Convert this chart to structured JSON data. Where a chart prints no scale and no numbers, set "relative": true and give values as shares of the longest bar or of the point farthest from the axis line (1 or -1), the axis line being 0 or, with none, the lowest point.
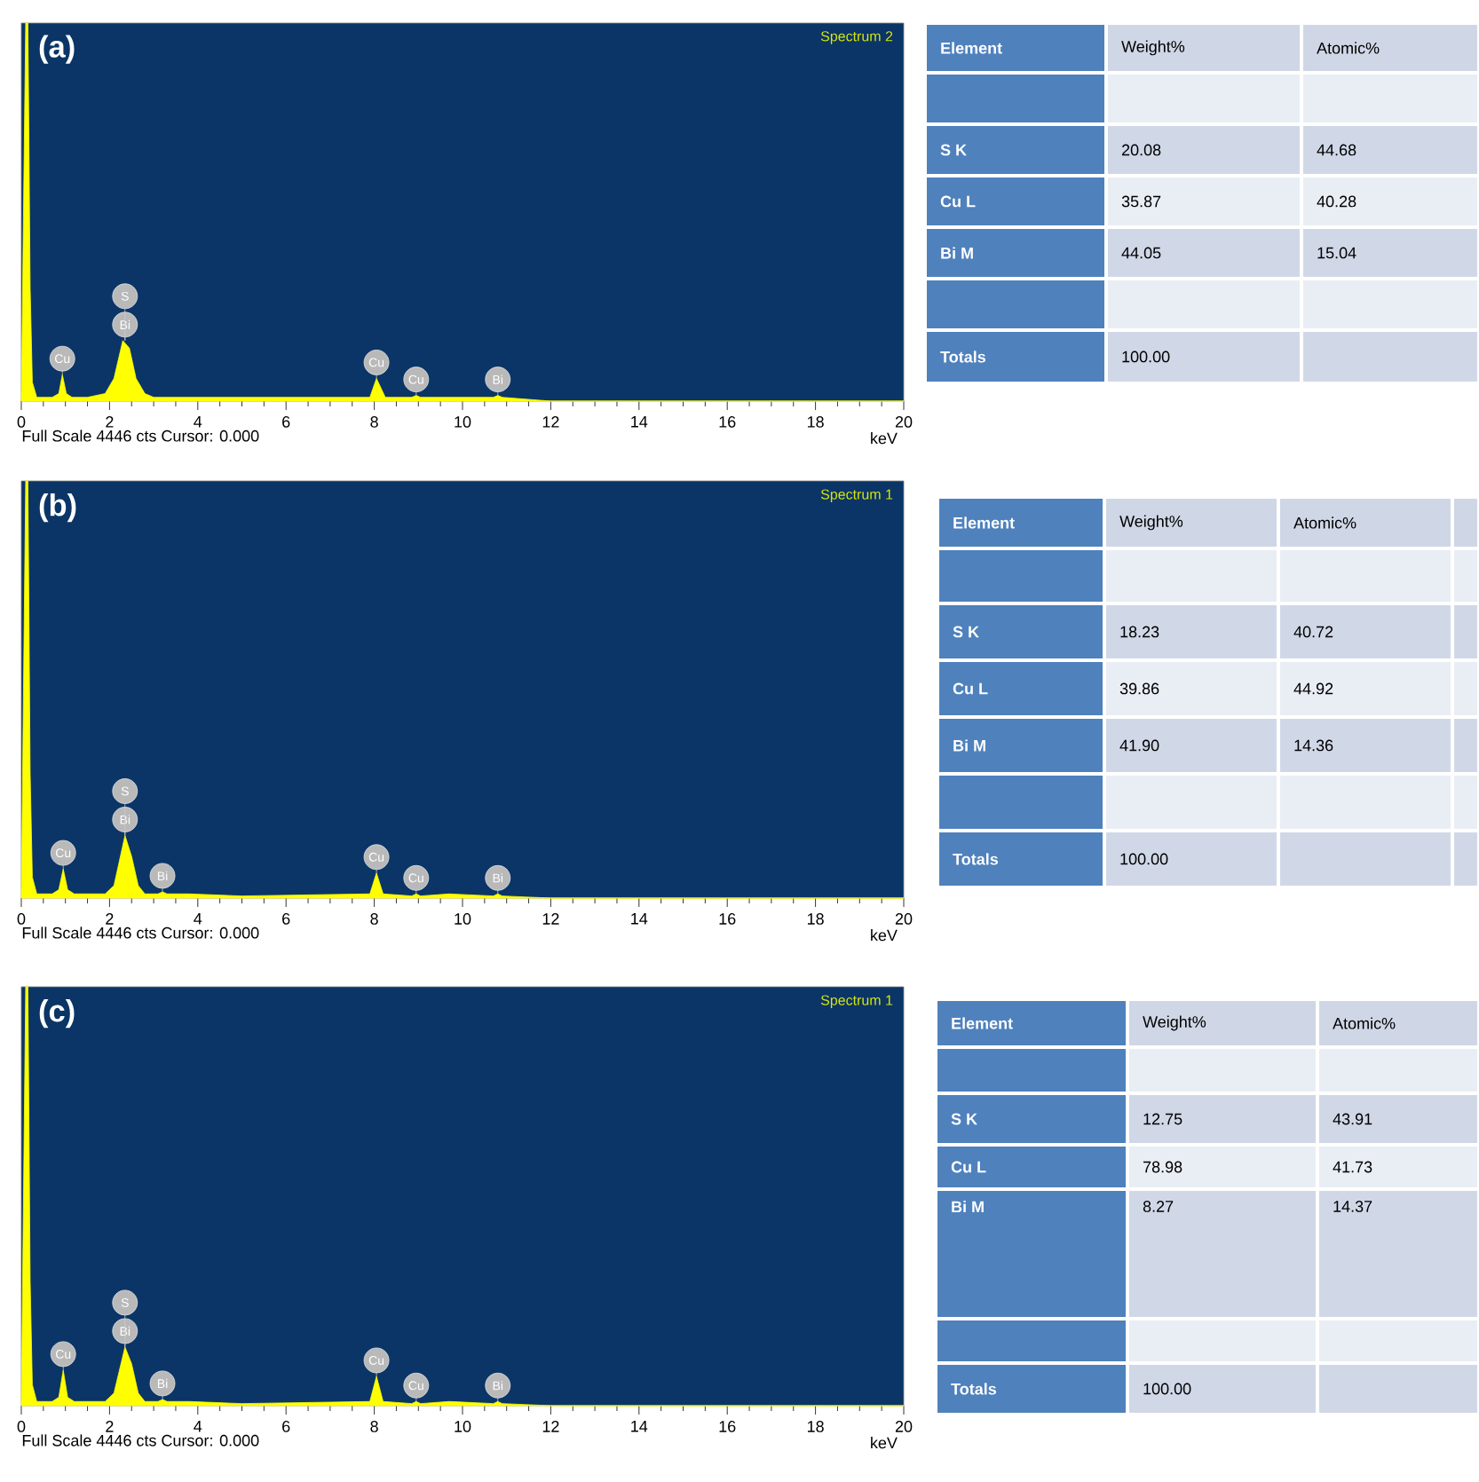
{
  "chart_data": [
    {
      "type": "area",
      "title": "(a)",
      "subtitle": "Spectrum 2",
      "xlabel": "keV",
      "relative": true,
      "color": "#ffff00",
      "xlim": [
        0,
        20
      ],
      "xticks": [
        0,
        2,
        4,
        6,
        8,
        10,
        12,
        14,
        16,
        18,
        20
      ],
      "x": [
        0,
        0.1,
        0.15,
        0.2,
        0.25,
        0.35,
        0.45,
        0.7,
        0.85,
        0.93,
        1.02,
        1.15,
        1.5,
        1.9,
        2.1,
        2.3,
        2.45,
        2.6,
        2.8,
        3.0,
        3.5,
        5,
        7.9,
        8.05,
        8.25,
        8.85,
        8.95,
        9.05,
        10.7,
        10.8,
        10.9,
        12,
        20
      ],
      "values": [
        0,
        1,
        1,
        0.3,
        0.05,
        0.01,
        0.01,
        0.01,
        0.02,
        0.07,
        0.02,
        0.01,
        0.01,
        0.02,
        0.06,
        0.16,
        0.14,
        0.06,
        0.02,
        0.01,
        0.01,
        0.01,
        0.01,
        0.06,
        0.01,
        0.01,
        0.015,
        0.01,
        0.01,
        0.015,
        0.01,
        0,
        0
      ],
      "annotations": [
        {
          "text": "Cu",
          "x": 0.93,
          "y": 0.07
        },
        {
          "text": "Bi",
          "x": 2.35,
          "y": 0.16
        },
        {
          "text": "S",
          "x": 2.35,
          "y": 0.16
        },
        {
          "text": "Cu",
          "x": 8.05,
          "y": 0.06
        },
        {
          "text": "Cu",
          "x": 8.95,
          "y": 0.015
        },
        {
          "text": "Bi",
          "x": 10.8,
          "y": 0.015
        },
        "Full Scale 4446 cts Cursor: 0.000"
      ]
    },
    {
      "type": "other",
      "categories": [
        "Element",
        "Weight%",
        "Atomic%"
      ],
      "y_categories": [
        null,
        "S K",
        "Cu L",
        "Bi M",
        null,
        "Totals"
      ],
      "cell_labels": [
        [
          null,
          null
        ],
        [
          "20.08",
          "44.68"
        ],
        [
          "35.87",
          "40.28"
        ],
        [
          "44.05",
          "15.04"
        ],
        [
          null,
          null
        ],
        [
          "100.00",
          null
        ]
      ]
    },
    {
      "type": "area",
      "title": "(b)",
      "subtitle": "Spectrum 1",
      "xlabel": "keV",
      "relative": true,
      "color": "#ffff00",
      "xlim": [
        0,
        20
      ],
      "xticks": [
        0,
        2,
        4,
        6,
        8,
        10,
        12,
        14,
        16,
        18,
        20
      ],
      "x": [
        0,
        0.1,
        0.15,
        0.2,
        0.25,
        0.35,
        0.7,
        0.85,
        0.95,
        1.05,
        1.2,
        1.9,
        2.1,
        2.35,
        2.5,
        2.65,
        2.8,
        3.1,
        3.2,
        3.3,
        3.8,
        5,
        7.9,
        8.05,
        8.2,
        8.85,
        8.95,
        9.05,
        9.7,
        10.7,
        10.8,
        10.9,
        12,
        20
      ],
      "values": [
        0,
        1,
        1,
        0.3,
        0.05,
        0.01,
        0.01,
        0.02,
        0.07,
        0.02,
        0.01,
        0.01,
        0.03,
        0.15,
        0.1,
        0.03,
        0.01,
        0.01,
        0.015,
        0.01,
        0.01,
        0.005,
        0.01,
        0.06,
        0.01,
        0.005,
        0.01,
        0.005,
        0.01,
        0.005,
        0.01,
        0.005,
        0,
        0
      ],
      "annotations": [
        {
          "text": "Cu",
          "x": 0.95,
          "y": 0.07
        },
        {
          "text": "Bi",
          "x": 2.35,
          "y": 0.15
        },
        {
          "text": "S",
          "x": 2.35,
          "y": 0.15
        },
        {
          "text": "Bi",
          "x": 3.2,
          "y": 0.015
        },
        {
          "text": "Cu",
          "x": 8.05,
          "y": 0.06
        },
        {
          "text": "Cu",
          "x": 8.95,
          "y": 0.01
        },
        {
          "text": "Bi",
          "x": 10.8,
          "y": 0.01
        },
        "Full Scale 4446 cts Cursor: 0.000"
      ]
    },
    {
      "type": "other",
      "categories": [
        "Element",
        "Weight%",
        "Atomic%"
      ],
      "y_categories": [
        null,
        "S K",
        "Cu L",
        "Bi M",
        null,
        "Totals"
      ],
      "cell_labels": [
        [
          null,
          null
        ],
        [
          "18.23",
          "40.72"
        ],
        [
          "39.86",
          "44.92"
        ],
        [
          "41.90",
          "14.36"
        ],
        [
          null,
          null
        ],
        [
          "100.00",
          null
        ]
      ]
    },
    {
      "type": "area",
      "title": "(c)",
      "subtitle": "Spectrum 1",
      "xlabel": "keV",
      "relative": true,
      "color": "#ffff00",
      "xlim": [
        0,
        20
      ],
      "xticks": [
        0,
        2,
        4,
        6,
        8,
        10,
        12,
        14,
        16,
        18,
        20
      ],
      "x": [
        0,
        0.1,
        0.15,
        0.2,
        0.25,
        0.35,
        0.7,
        0.85,
        0.95,
        1.05,
        1.2,
        1.9,
        2.1,
        2.35,
        2.5,
        2.65,
        2.8,
        3.1,
        3.2,
        3.3,
        3.8,
        5,
        7.9,
        8.05,
        8.2,
        8.85,
        8.95,
        9.05,
        9.7,
        10.7,
        10.8,
        10.9,
        12,
        20
      ],
      "values": [
        0,
        1,
        1,
        0.3,
        0.05,
        0.01,
        0.01,
        0.02,
        0.085,
        0.02,
        0.01,
        0.01,
        0.03,
        0.14,
        0.1,
        0.03,
        0.01,
        0.01,
        0.015,
        0.01,
        0.01,
        0.005,
        0.01,
        0.07,
        0.01,
        0.005,
        0.01,
        0.005,
        0.01,
        0.005,
        0.01,
        0.005,
        0,
        0
      ],
      "annotations": [
        {
          "text": "Cu",
          "x": 0.95,
          "y": 0.085
        },
        {
          "text": "Bi",
          "x": 2.35,
          "y": 0.14
        },
        {
          "text": "S",
          "x": 2.35,
          "y": 0.14
        },
        {
          "text": "Bi",
          "x": 3.2,
          "y": 0.015
        },
        {
          "text": "Cu",
          "x": 8.05,
          "y": 0.07
        },
        {
          "text": "Cu",
          "x": 8.95,
          "y": 0.01
        },
        {
          "text": "Bi",
          "x": 10.8,
          "y": 0.01
        },
        "Full Scale 4446 cts Cursor: 0.000"
      ]
    },
    {
      "type": "other",
      "categories": [
        "Element",
        "Weight%",
        "Atomic%"
      ],
      "y_categories": [
        null,
        "S K",
        "Cu L",
        "Bi M",
        null,
        "Totals"
      ],
      "cell_labels": [
        [
          null,
          null
        ],
        [
          "12.75",
          "43.91"
        ],
        [
          "78.98",
          "41.73"
        ],
        [
          "8.27",
          "14.37"
        ],
        [
          null,
          null
        ],
        [
          "100.00",
          null
        ]
      ]
    }
  ]
}
